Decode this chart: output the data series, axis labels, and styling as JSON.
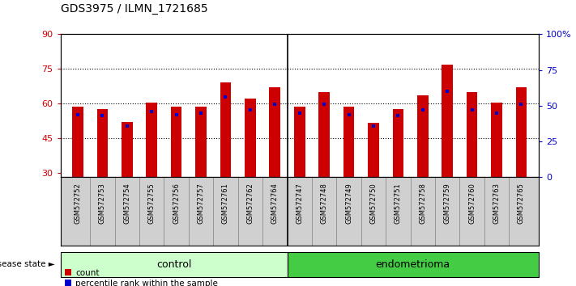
{
  "title": "GDS3975 / ILMN_1721685",
  "samples": [
    "GSM572752",
    "GSM572753",
    "GSM572754",
    "GSM572755",
    "GSM572756",
    "GSM572757",
    "GSM572761",
    "GSM572762",
    "GSM572764",
    "GSM572747",
    "GSM572748",
    "GSM572749",
    "GSM572750",
    "GSM572751",
    "GSM572758",
    "GSM572759",
    "GSM572760",
    "GSM572763",
    "GSM572765"
  ],
  "count_values": [
    58.5,
    57.5,
    52.0,
    60.5,
    58.5,
    58.5,
    69.0,
    62.0,
    67.0,
    58.5,
    65.0,
    58.5,
    51.5,
    57.5,
    63.5,
    77.0,
    65.0,
    60.5,
    67.0
  ],
  "percentile_values": [
    44.0,
    43.0,
    36.0,
    46.0,
    44.0,
    45.0,
    56.0,
    47.0,
    51.0,
    45.0,
    51.0,
    44.0,
    36.0,
    43.0,
    47.0,
    60.0,
    47.0,
    45.0,
    51.0
  ],
  "n_control": 9,
  "n_endometrioma": 10,
  "ylim_left": [
    28,
    90
  ],
  "ylim_right": [
    0,
    100
  ],
  "yticks_left": [
    30,
    45,
    60,
    75,
    90
  ],
  "yticks_right": [
    0,
    25,
    50,
    75,
    100
  ],
  "bar_color": "#cc0000",
  "marker_color": "#0000cc",
  "bar_width": 0.45,
  "control_bg": "#ccffcc",
  "endometrioma_bg": "#44cc44",
  "control_label": "control",
  "endometrioma_label": "endometrioma",
  "disease_state_label": "disease state",
  "legend_count": "count",
  "legend_percentile": "percentile rank within the sample",
  "plot_bg": "#ffffff",
  "tick_color_left": "#cc0000",
  "tick_color_right": "#0000cc",
  "label_bg": "#d0d0d0"
}
